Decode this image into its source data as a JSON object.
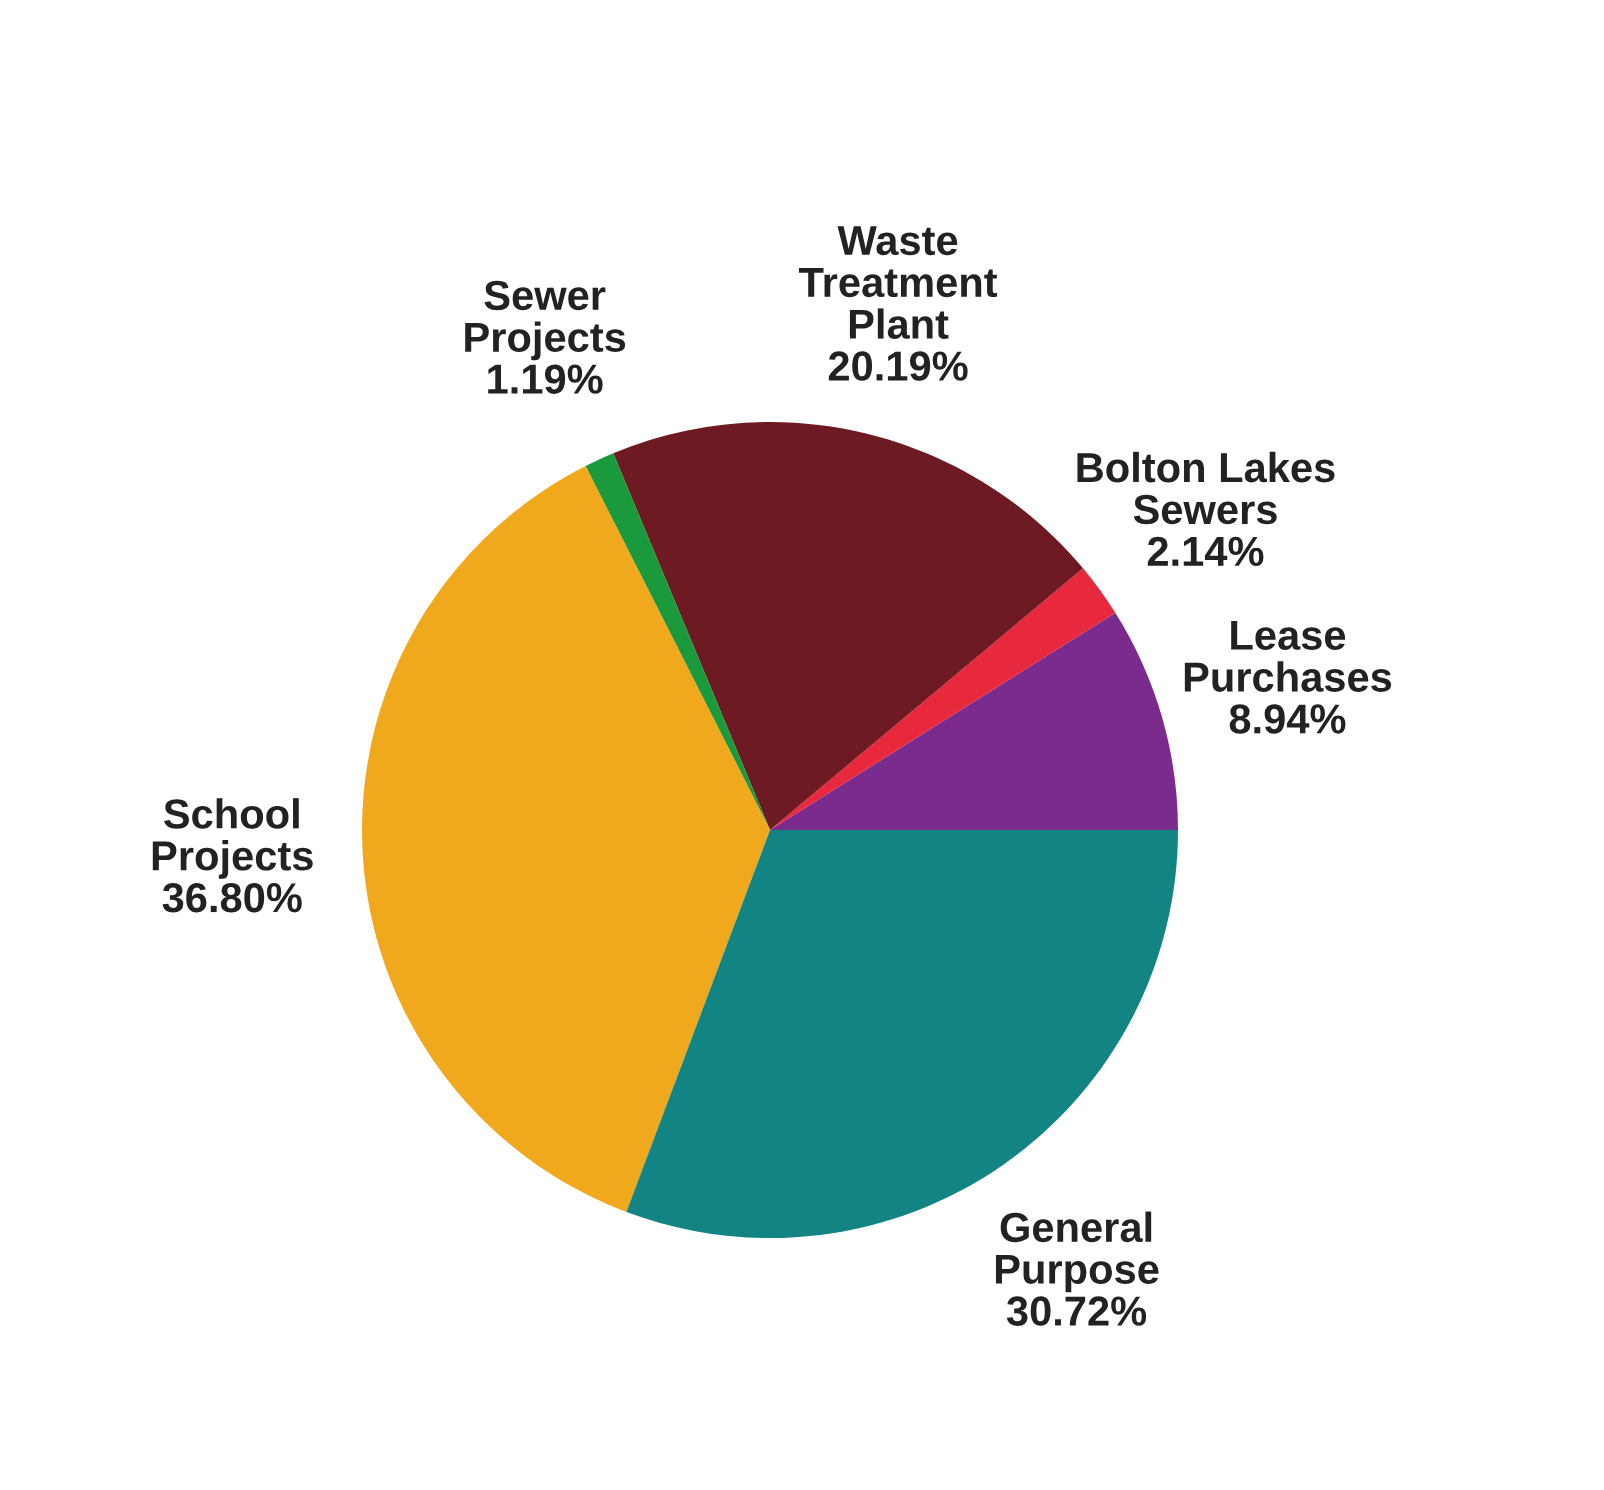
{
  "chart_data": {
    "type": "pie",
    "categories": [
      "Lease\nPurchases",
      "Bolton Lakes\nSewers",
      "Waste\nTreatment\nPlant",
      "Sewer\nProjects",
      "School\nProjects",
      "General\nPurpose"
    ],
    "values": [
      8.94,
      2.14,
      20.19,
      1.19,
      36.8,
      30.72
    ],
    "value_labels": [
      "8.94%",
      "2.14%",
      "20.19%",
      "1.19%",
      "36.80%",
      "30.72%"
    ],
    "colors": [
      "#7b2a8e",
      "#e8283c",
      "#6e1a22",
      "#1a9a3c",
      "#f0a81c",
      "#138484"
    ]
  }
}
